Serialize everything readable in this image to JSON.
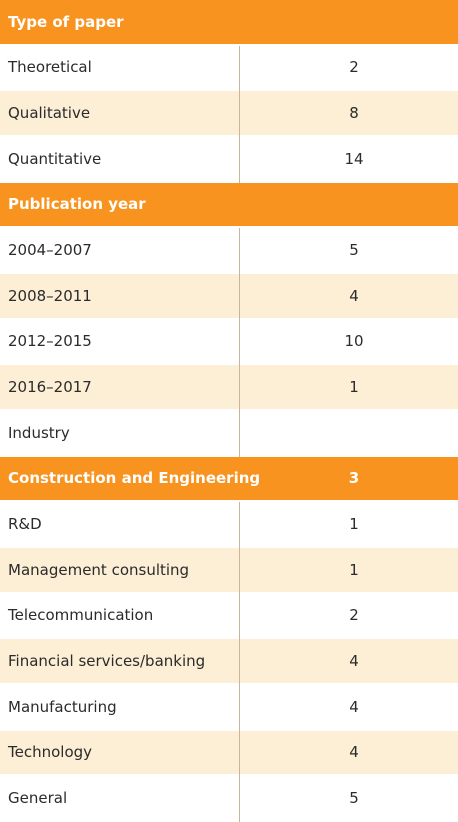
{
  "table": {
    "sections": [
      {
        "title": "Type of paper",
        "rows": [
          [
            "Theoretical",
            2
          ],
          [
            "Qualitative",
            8
          ],
          [
            "Quantitative",
            14
          ]
        ]
      },
      {
        "title": "Publication year",
        "rows": [
          [
            "2004–2007",
            5
          ],
          [
            "2008–2011",
            4
          ],
          [
            "2012–2015",
            10
          ],
          [
            "2016–2017",
            1
          ],
          [
            "Industry"
          ]
        ]
      },
      {
        "title": "Construction and Engineering",
        "value": 3,
        "rows": [
          [
            "R&D",
            1
          ],
          [
            "Management consulting",
            1
          ],
          [
            "Telecommunication",
            2
          ],
          [
            "Financial services/banking",
            4
          ],
          [
            "Manufacturing",
            4
          ],
          [
            "Technology",
            4
          ],
          [
            "General",
            5
          ]
        ]
      }
    ]
  }
}
